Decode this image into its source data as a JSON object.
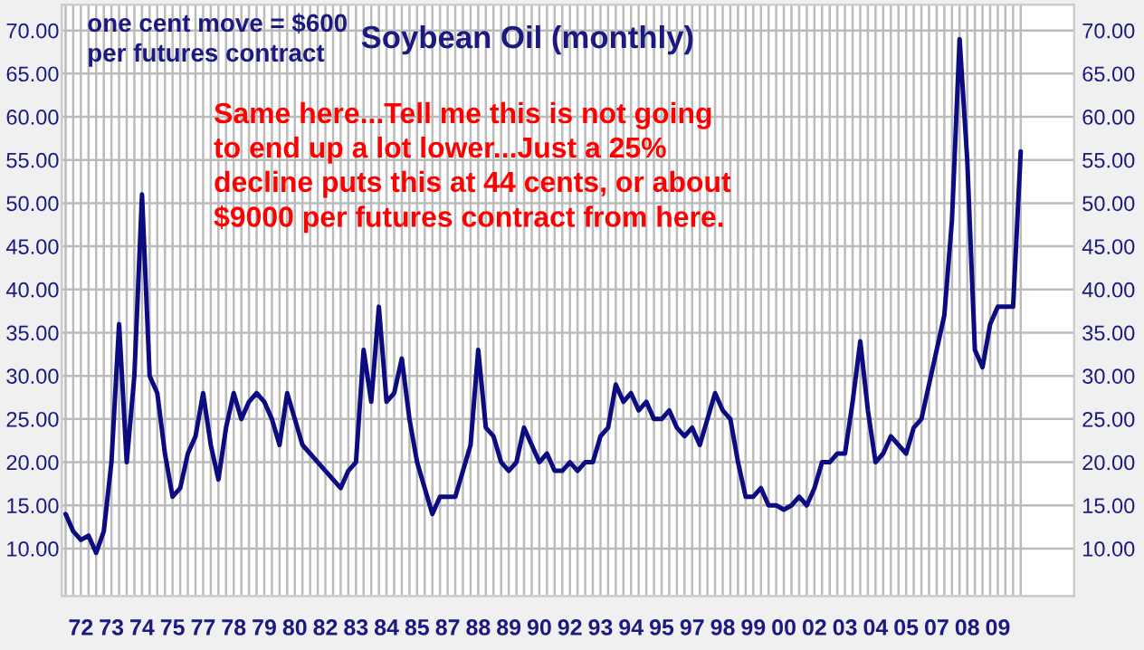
{
  "chart_data": {
    "type": "line",
    "title": "Soybean Oil (monthly)",
    "annotations": [
      "one cent move = $600\nper futures contract",
      "Same here...Tell me this is not going\nto end up a lot lower...Just a 25%\ndecline puts this at 44 cents, or about\n$9000 per futures contract from here."
    ],
    "categories": [
      null,
      null,
      "72",
      null,
      null,
      null,
      "73",
      null,
      null,
      null,
      "74",
      null,
      null,
      null,
      "75",
      null,
      null,
      null,
      "77",
      null,
      null,
      null,
      "78",
      null,
      null,
      null,
      "79",
      null,
      null,
      null,
      "80",
      null,
      null,
      null,
      "82",
      null,
      null,
      null,
      "83",
      null,
      null,
      null,
      "84",
      null,
      null,
      null,
      "85",
      null,
      null,
      null,
      "87",
      null,
      null,
      null,
      "88",
      null,
      null,
      null,
      "89",
      null,
      null,
      null,
      "90",
      null,
      null,
      null,
      "92",
      null,
      null,
      null,
      "93",
      null,
      null,
      null,
      "94",
      null,
      null,
      null,
      "95",
      null,
      null,
      null,
      "97",
      null,
      null,
      null,
      "98",
      null,
      null,
      null,
      "99",
      null,
      null,
      null,
      "00",
      null,
      null,
      null,
      "02",
      null,
      null,
      null,
      "03",
      null,
      null,
      null,
      "04",
      null,
      null,
      null,
      "05",
      null,
      null,
      null,
      "07",
      null,
      null,
      null,
      "08",
      null,
      null,
      null,
      "09",
      null,
      null,
      null
    ],
    "series": [
      {
        "color": "#0c0c80",
        "values": [
          14,
          12,
          11,
          11.5,
          9.5,
          12,
          20,
          36,
          20,
          30,
          51,
          30,
          28,
          21,
          16,
          17,
          21,
          23,
          28,
          22,
          18,
          24,
          28,
          25,
          27,
          28,
          27,
          25,
          22,
          28,
          25,
          22,
          21,
          20,
          19,
          18,
          17,
          19,
          20,
          33,
          27,
          38,
          27,
          28,
          32,
          25,
          20,
          17,
          14,
          16,
          16,
          16,
          19,
          22,
          33,
          24,
          23,
          20,
          19,
          20,
          24,
          22,
          20,
          21,
          19,
          19,
          20,
          19,
          20,
          20,
          23,
          24,
          29,
          27,
          28,
          26,
          27,
          25,
          25,
          26,
          24,
          23,
          24,
          22,
          25,
          28,
          26,
          25,
          20,
          16,
          16,
          17,
          15,
          15,
          14.5,
          15,
          16,
          15,
          17,
          20,
          20,
          21,
          21,
          27,
          34,
          26,
          20,
          21,
          23,
          22,
          21,
          24,
          25,
          29,
          33,
          37,
          48,
          69,
          55,
          33,
          31,
          36,
          38,
          38,
          38,
          56
        ]
      }
    ],
    "ylim": [
      4.5,
      73
    ],
    "yticks": [
      {
        "value": 10,
        "label": "10.00"
      },
      {
        "value": 15,
        "label": "15.00"
      },
      {
        "value": 20,
        "label": "20.00"
      },
      {
        "value": 25,
        "label": "25.00"
      },
      {
        "value": 30,
        "label": "30.00"
      },
      {
        "value": 35,
        "label": "35.00"
      },
      {
        "value": 40,
        "label": "40.00"
      },
      {
        "value": 45,
        "label": "45.00"
      },
      {
        "value": 50,
        "label": "50.00"
      },
      {
        "value": 55,
        "label": "55.00"
      },
      {
        "value": 60,
        "label": "60.00"
      },
      {
        "value": 65,
        "label": "65.00"
      },
      {
        "value": 70,
        "label": "70.00"
      }
    ],
    "y2lim": [
      4.5,
      73
    ],
    "y2ticks": [
      {
        "value": 10,
        "label": "10.00"
      },
      {
        "value": 15,
        "label": "15.00"
      },
      {
        "value": 20,
        "label": "20.00"
      },
      {
        "value": 25,
        "label": "25.00"
      },
      {
        "value": 30,
        "label": "30.00"
      },
      {
        "value": 35,
        "label": "35.00"
      },
      {
        "value": 40,
        "label": "40.00"
      },
      {
        "value": 45,
        "label": "45.00"
      },
      {
        "value": 50,
        "label": "50.00"
      },
      {
        "value": 55,
        "label": "55.00"
      },
      {
        "value": 60,
        "label": "60.00"
      },
      {
        "value": 65,
        "label": "65.00"
      },
      {
        "value": 70,
        "label": "70.00"
      }
    ],
    "grid": true,
    "marker": "none",
    "line_style": "solid"
  }
}
